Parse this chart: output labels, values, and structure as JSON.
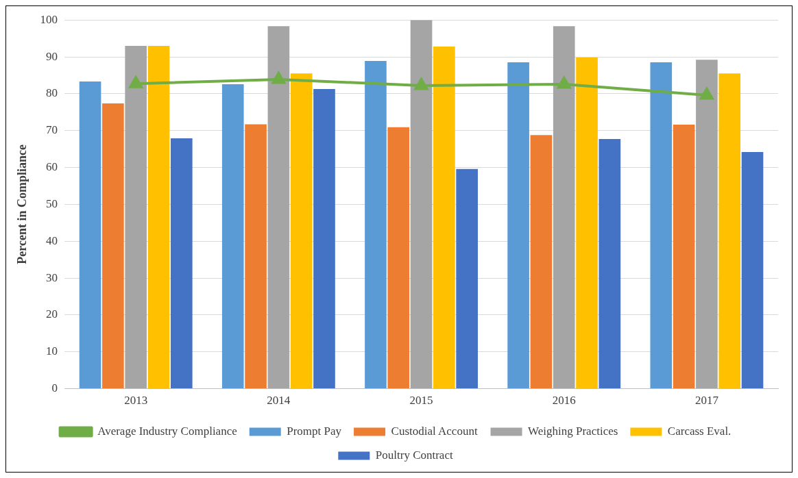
{
  "chart_data": {
    "type": "bar",
    "ylabel": "Percent in Compliance",
    "categories": [
      "2013",
      "2014",
      "2015",
      "2016",
      "2017"
    ],
    "series": [
      {
        "name": "Prompt Pay",
        "color": "#5b9bd5",
        "values": [
          83.3,
          82.6,
          88.9,
          88.5,
          88.5
        ]
      },
      {
        "name": "Custodial Account",
        "color": "#ed7d31",
        "values": [
          77.4,
          71.7,
          70.9,
          68.8,
          71.6
        ]
      },
      {
        "name": "Weighing Practices",
        "color": "#a5a5a5",
        "values": [
          93.0,
          98.3,
          100,
          98.3,
          89.2
        ]
      },
      {
        "name": "Carcass Eval.",
        "color": "#ffc000",
        "values": [
          93.0,
          85.5,
          92.8,
          89.8,
          85.5
        ]
      },
      {
        "name": "Poultry Contract",
        "color": "#4472c4",
        "values": [
          67.9,
          81.3,
          59.6,
          67.7,
          64.2
        ]
      },
      {
        "name": "Average Industry Compliance",
        "type": "line",
        "color": "#70ad47",
        "marker": "triangle",
        "values": [
          82.7,
          83.9,
          82.2,
          82.6,
          79.6
        ]
      }
    ],
    "ylim": [
      0,
      100
    ],
    "yticks": [
      0,
      10,
      20,
      30,
      40,
      50,
      60,
      70,
      80,
      90,
      100
    ],
    "grid": "y",
    "legend": "bottom"
  }
}
